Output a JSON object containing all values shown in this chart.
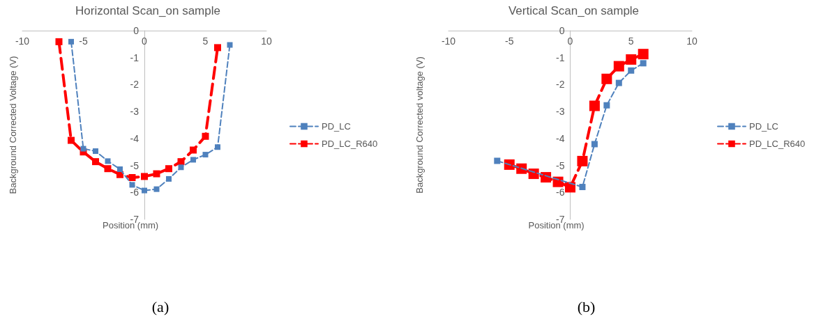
{
  "chart_data": [
    {
      "type": "line",
      "title": "Horizontal Scan_on sample",
      "xlabel": "Position (mm)",
      "ylabel": "Background Corrected Voltage (V)",
      "annotations": [
        "(a)"
      ],
      "xlim": [
        -10,
        10
      ],
      "xticks": [
        -10,
        -5,
        0,
        5,
        10
      ],
      "ylim": [
        -7,
        0
      ],
      "yticks": [
        -7,
        -6,
        -5,
        -4,
        -3,
        -2,
        -1,
        0
      ],
      "grid": false,
      "legend": "right",
      "marker": "square",
      "line_style": "dashed",
      "series": [
        {
          "name": "PD_LC",
          "color": "#4f81bd",
          "x": [
            -6,
            -5,
            -4,
            -3,
            -2,
            -1,
            0,
            1,
            2,
            3,
            4,
            5,
            6,
            7
          ],
          "values": [
            -0.41,
            -4.38,
            -4.47,
            -4.84,
            -5.14,
            -5.72,
            -5.93,
            -5.88,
            -5.5,
            -5.07,
            -4.79,
            -4.6,
            -4.32,
            -0.53
          ]
        },
        {
          "name": "PD_LC_R640",
          "color": "#ff0000",
          "x": [
            -7,
            -6,
            -5,
            -4,
            -3,
            -2,
            -1,
            0,
            1,
            2,
            3,
            4,
            5,
            6
          ],
          "values": [
            -0.41,
            -4.07,
            -4.5,
            -4.86,
            -5.12,
            -5.34,
            -5.45,
            -5.41,
            -5.31,
            -5.12,
            -4.86,
            -4.43,
            -3.92,
            -0.63
          ]
        }
      ]
    },
    {
      "type": "line",
      "title": "Vertical Scan_on sample",
      "xlabel": "Position (mm)",
      "ylabel": "Background Corrected voltage (V)",
      "annotations": [
        "(b)"
      ],
      "xlim": [
        -10,
        10
      ],
      "xticks": [
        -10,
        -5,
        0,
        5,
        10
      ],
      "ylim": [
        -7,
        0
      ],
      "yticks": [
        -7,
        -6,
        -5,
        -4,
        -3,
        -2,
        -1,
        0
      ],
      "grid": false,
      "legend": "right",
      "marker": "square",
      "line_style": "dashed",
      "series": [
        {
          "name": "PD_LC",
          "color": "#4f81bd",
          "x": [
            -6,
            1,
            2,
            3,
            4,
            5,
            6
          ],
          "values": [
            -4.83,
            -5.8,
            -4.21,
            -2.77,
            -1.94,
            -1.48,
            -1.21
          ]
        },
        {
          "name": "PD_LC_R640",
          "color": "#ff0000",
          "x": [
            -5,
            -4,
            -3,
            -2,
            -1,
            0,
            1,
            2,
            3,
            4,
            5,
            6
          ],
          "values": [
            -4.97,
            -5.12,
            -5.31,
            -5.44,
            -5.61,
            -5.81,
            -4.84,
            -2.79,
            -1.79,
            -1.32,
            -1.07,
            -0.87
          ]
        }
      ]
    }
  ]
}
